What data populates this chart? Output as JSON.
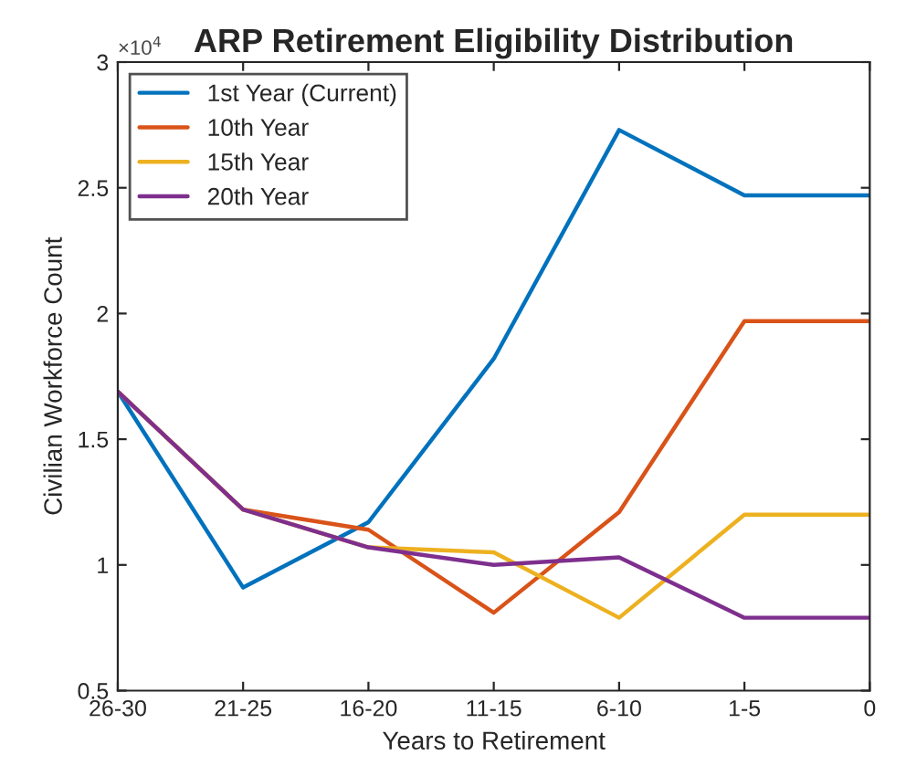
{
  "chart_data": {
    "type": "line",
    "title": "ARP Retirement Eligibility Distribution",
    "xlabel": "Years to Retirement",
    "ylabel": "Civilian Workforce Count",
    "annotations": [
      "×10$^{4}$"
    ],
    "categories": [
      "26-30",
      "21-25",
      "16-20",
      "11-15",
      "6-10",
      "1-5",
      "0"
    ],
    "series": [
      {
        "name": "1st Year (Current)",
        "color": "#0072bd",
        "values": [
          1.69,
          0.91,
          1.17,
          1.82,
          2.73,
          2.47,
          2.47
        ]
      },
      {
        "name": "10th Year",
        "color": "#d95319",
        "values": [
          1.69,
          1.22,
          1.14,
          0.81,
          1.21,
          1.97,
          1.97
        ]
      },
      {
        "name": "15th Year",
        "color": "#edb120",
        "values": [
          1.69,
          1.22,
          1.07,
          1.05,
          0.79,
          1.2,
          1.2
        ]
      },
      {
        "name": "20th Year",
        "color": "#7e2f8e",
        "values": [
          1.69,
          1.22,
          1.07,
          1.0,
          1.03,
          0.79,
          0.79
        ]
      }
    ],
    "ylim": [
      0.5,
      3
    ],
    "yticks": [
      0.5,
      1,
      1.5,
      2,
      2.5,
      3
    ],
    "grid": false,
    "legend": "top left",
    "marker": "none",
    "line_style": "solid"
  }
}
